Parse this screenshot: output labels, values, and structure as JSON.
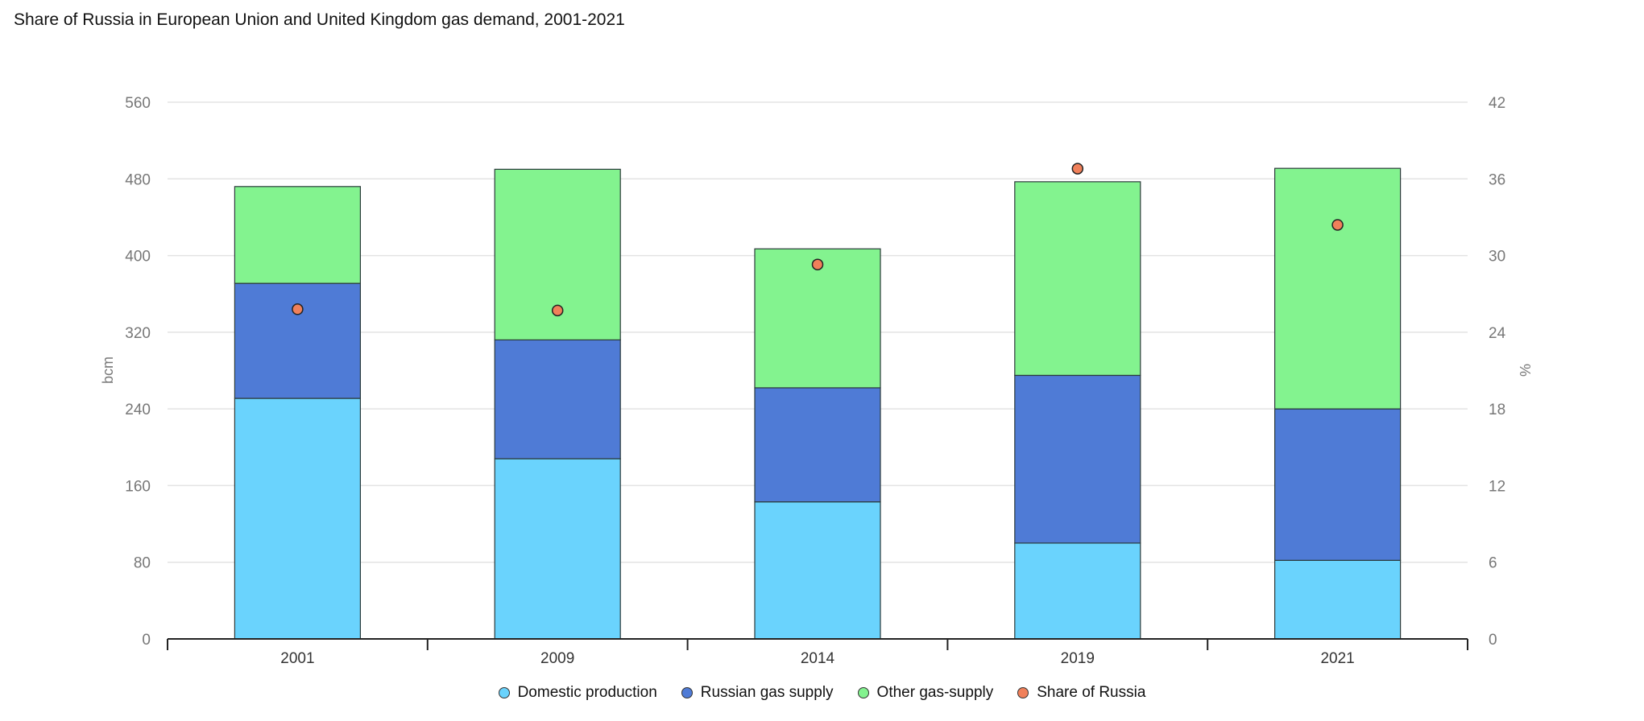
{
  "title": "Share of Russia in European Union and United Kingdom gas demand, 2001-2021",
  "chart_data": {
    "type": "bar",
    "stacked": true,
    "categories": [
      "2001",
      "2009",
      "2014",
      "2019",
      "2021"
    ],
    "series": [
      {
        "name": "Domestic production",
        "color": "#6ad3fd",
        "axis": "left",
        "values": [
          251,
          188,
          143,
          100,
          82
        ]
      },
      {
        "name": "Russian gas supply",
        "color": "#4f7bd6",
        "axis": "left",
        "values": [
          120,
          124,
          119,
          175,
          158
        ]
      },
      {
        "name": "Other gas-supply",
        "color": "#83f38f",
        "axis": "left",
        "values": [
          101,
          178,
          145,
          202,
          251
        ]
      },
      {
        "name": "Share of Russia",
        "color": "#f0805a",
        "axis": "right",
        "type": "scatter",
        "values": [
          25.8,
          25.7,
          29.3,
          36.8,
          32.4
        ]
      }
    ],
    "ylabel": "bcm",
    "ylim": [
      0,
      560
    ],
    "yticks": [
      "0",
      "80",
      "160",
      "240",
      "320",
      "400",
      "480",
      "560"
    ],
    "y2label": "%",
    "y2lim": [
      0,
      42
    ],
    "y2ticks": [
      "0",
      "6",
      "12",
      "18",
      "24",
      "30",
      "36",
      "42"
    ],
    "grid": true,
    "legend_position": "bottom"
  }
}
